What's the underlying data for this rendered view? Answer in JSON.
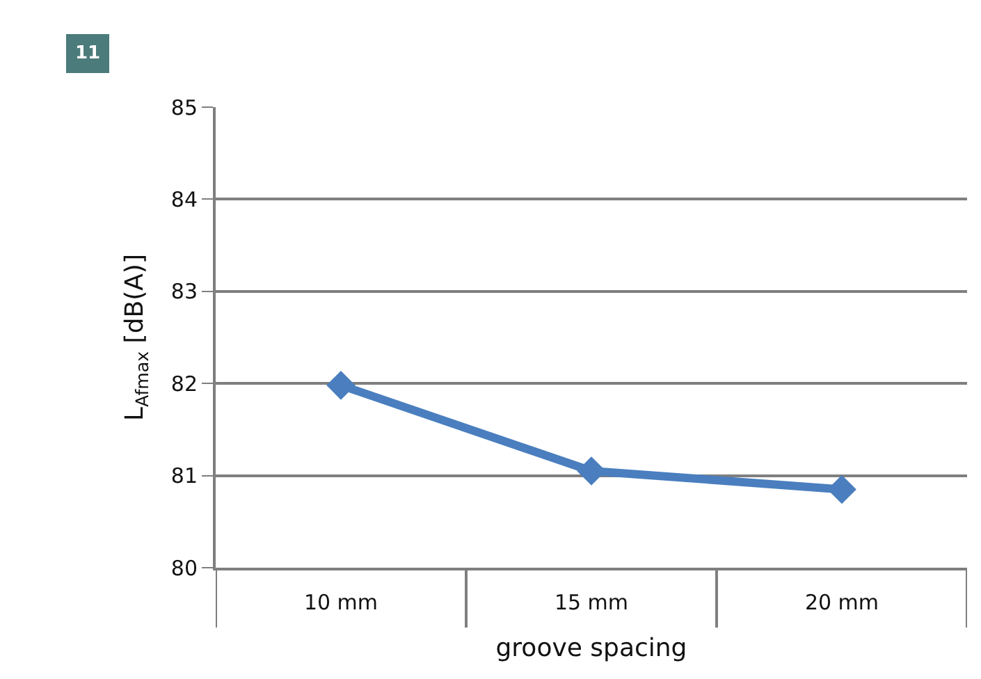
{
  "chart_data": {
    "type": "line",
    "xlabel": "groove spacing",
    "ylabel": "L$_{Afmax}$ [dB(A)]",
    "annotations": [
      "11"
    ],
    "categories": [
      "10 mm",
      "15 mm",
      "20 mm"
    ],
    "series": [
      {
        "color": "#4a7ebf",
        "values": [
          81.98,
          81.05,
          80.85
        ]
      }
    ],
    "ylim": [
      80,
      85
    ],
    "yticks": [
      80,
      81,
      82,
      83,
      84,
      85
    ],
    "grid": "y",
    "marker": "diamond",
    "line_style": "solid"
  }
}
